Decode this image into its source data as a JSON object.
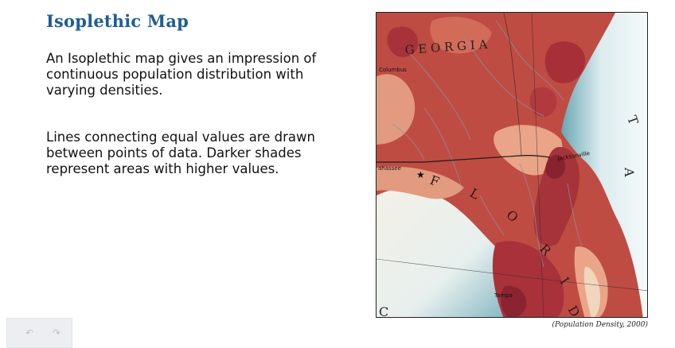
{
  "page": {
    "title": "Isoplethic Map",
    "paragraph_1": "An Isoplethic map gives an impression of continuous population distribution with varying densities.",
    "paragraph_2": "Lines connecting equal values are drawn between points of data. Darker shades represent areas with higher values."
  },
  "map": {
    "caption": "(Population Density, 2000)",
    "labels": {
      "georgia": "G E O R G I A",
      "columbus": "Columbus",
      "tallahassee": "ahassee",
      "jacksonville": "Jacksonville",
      "tampa": "Tampa",
      "florida_letters": [
        "F",
        "L",
        "O",
        "R",
        "I",
        "D"
      ],
      "atlantic_letters": [
        "T",
        "A"
      ],
      "gulf_letter": "C"
    },
    "colors": {
      "lowest": "#f1e3cf",
      "low": "#e9a487",
      "medium": "#c5564a",
      "high": "#a8323a",
      "highest": "#86232f",
      "water": "#f4f8f9",
      "shore": "#6aa6b4"
    }
  },
  "nav": {
    "prev_icon": "↶",
    "next_icon": "↷"
  }
}
